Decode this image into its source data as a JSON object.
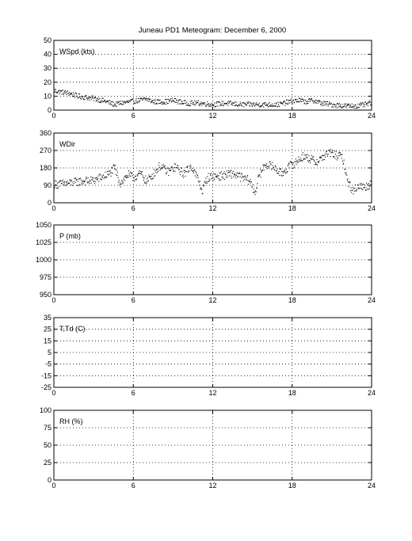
{
  "title": "Juneau PD1 Meteogram:  December  6, 2000",
  "x_ticks": [
    0,
    6,
    12,
    18,
    24
  ],
  "xlim": [
    0,
    24
  ],
  "chart_data": [
    {
      "type": "scatter",
      "label": "WSpd (kts)",
      "ylim": [
        0,
        50
      ],
      "yticks": [
        0,
        10,
        20,
        30,
        40,
        50
      ],
      "grid": true,
      "anchors": [
        [
          0,
          14
        ],
        [
          0.5,
          13
        ],
        [
          1.2,
          12
        ],
        [
          1.8,
          10
        ],
        [
          2.5,
          9
        ],
        [
          3.2,
          8
        ],
        [
          4.0,
          6
        ],
        [
          4.6,
          4
        ],
        [
          5.0,
          5
        ],
        [
          5.8,
          6
        ],
        [
          6.5,
          7
        ],
        [
          7.0,
          8
        ],
        [
          7.5,
          6
        ],
        [
          8.5,
          6
        ],
        [
          9.0,
          7
        ],
        [
          10.0,
          5
        ],
        [
          11.0,
          5
        ],
        [
          12.0,
          4
        ],
        [
          13.0,
          5
        ],
        [
          14.0,
          4
        ],
        [
          15.0,
          4
        ],
        [
          16.0,
          4
        ],
        [
          17.0,
          4
        ],
        [
          17.8,
          6
        ],
        [
          18.5,
          7
        ],
        [
          19.0,
          6
        ],
        [
          19.6,
          7
        ],
        [
          20.2,
          5
        ],
        [
          21.0,
          4
        ],
        [
          22.0,
          3
        ],
        [
          23.0,
          3
        ],
        [
          24.0,
          5
        ]
      ],
      "noise": 1.8
    },
    {
      "type": "scatter",
      "label": "WDir",
      "ylim": [
        0,
        360
      ],
      "yticks": [
        0,
        90,
        180,
        270,
        360
      ],
      "grid": true,
      "anchors": [
        [
          0,
          95
        ],
        [
          1.0,
          100
        ],
        [
          2.0,
          110
        ],
        [
          3.0,
          115
        ],
        [
          3.7,
          135
        ],
        [
          4.2,
          150
        ],
        [
          4.6,
          180
        ],
        [
          5.0,
          100
        ],
        [
          5.6,
          145
        ],
        [
          6.0,
          130
        ],
        [
          6.6,
          150
        ],
        [
          7.0,
          110
        ],
        [
          7.6,
          155
        ],
        [
          8.0,
          190
        ],
        [
          8.6,
          160
        ],
        [
          9.2,
          185
        ],
        [
          9.8,
          150
        ],
        [
          10.4,
          190
        ],
        [
          10.9,
          120
        ],
        [
          11.2,
          60
        ],
        [
          11.6,
          130
        ],
        [
          12.0,
          135
        ],
        [
          12.8,
          140
        ],
        [
          13.5,
          150
        ],
        [
          14.2,
          130
        ],
        [
          14.8,
          115
        ],
        [
          15.2,
          50
        ],
        [
          15.5,
          140
        ],
        [
          16.0,
          200
        ],
        [
          16.6,
          185
        ],
        [
          17.2,
          150
        ],
        [
          17.8,
          190
        ],
        [
          18.3,
          210
        ],
        [
          18.8,
          240
        ],
        [
          19.3,
          230
        ],
        [
          19.8,
          210
        ],
        [
          20.3,
          235
        ],
        [
          20.8,
          260
        ],
        [
          21.3,
          245
        ],
        [
          21.8,
          235
        ],
        [
          22.2,
          110
        ],
        [
          22.6,
          60
        ],
        [
          23.0,
          90
        ],
        [
          23.4,
          80
        ],
        [
          23.8,
          90
        ],
        [
          24.0,
          110
        ]
      ],
      "noise": 22
    },
    {
      "type": "line",
      "label": "P (mb)",
      "ylim": [
        950,
        1050
      ],
      "yticks": [
        950,
        975,
        1000,
        1025,
        1050
      ],
      "grid": true
    },
    {
      "type": "line",
      "label": "T,Td (C)",
      "ylim": [
        -25,
        35
      ],
      "yticks": [
        -25,
        -15,
        -5,
        5,
        15,
        25,
        35
      ],
      "grid": true
    },
    {
      "type": "line",
      "label": "RH (%)",
      "ylim": [
        0,
        100
      ],
      "yticks": [
        0,
        25,
        50,
        75,
        100
      ],
      "grid": true
    }
  ]
}
